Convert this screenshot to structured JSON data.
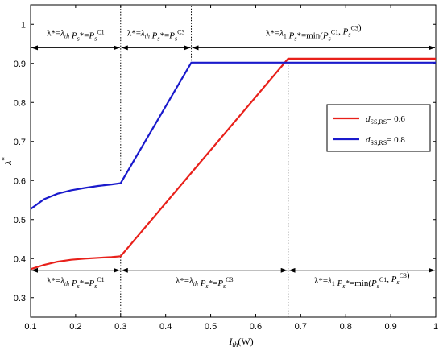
{
  "chart_data": {
    "type": "line",
    "xlabel": "I_th(W)",
    "ylabel": "λ*",
    "xlim": [
      0.1,
      1.0
    ],
    "ylim": [
      0.25,
      1.05
    ],
    "xticks": [
      0.1,
      0.2,
      0.3,
      0.4,
      0.5,
      0.6,
      0.7,
      0.8,
      0.9,
      1
    ],
    "xtick_labels": [
      "0.1",
      "0.2",
      "0.3",
      "0.4",
      "0.5",
      "0.6",
      "0.7",
      "0.8",
      "0.9",
      "1"
    ],
    "yticks": [
      0.3,
      0.4,
      0.5,
      0.6,
      0.7,
      0.8,
      0.9,
      1
    ],
    "ytick_labels": [
      "0.3",
      "0.4",
      "0.5",
      "0.6",
      "0.7",
      "0.8",
      "0.9",
      "1"
    ],
    "grid": false,
    "legend_placement": "right",
    "series": [
      {
        "name": "d_SS,RS= 0.6",
        "color": "#e8201a",
        "x": [
          0.1,
          0.13,
          0.16,
          0.19,
          0.22,
          0.25,
          0.28,
          0.3,
          0.672,
          1.0
        ],
        "y": [
          0.373,
          0.384,
          0.392,
          0.397,
          0.4,
          0.402,
          0.404,
          0.406,
          0.912,
          0.912
        ]
      },
      {
        "name": "d_SS,RS= 0.8",
        "color": "#1a1acc",
        "x": [
          0.1,
          0.13,
          0.16,
          0.19,
          0.22,
          0.25,
          0.28,
          0.3,
          0.457,
          1.0
        ],
        "y": [
          0.527,
          0.552,
          0.566,
          0.575,
          0.581,
          0.586,
          0.59,
          0.593,
          0.902,
          0.902
        ]
      }
    ],
    "reference_lines": [
      {
        "x": 0.3,
        "y_from": 0.625,
        "y_to": 1.05,
        "style": "dotted"
      },
      {
        "x": 0.457,
        "y_from": 0.9,
        "y_to": 1.05,
        "style": "dotted"
      },
      {
        "x": 0.3,
        "y_from": 0.25,
        "y_to": 0.41,
        "style": "dotted"
      },
      {
        "x": 0.672,
        "y_from": 0.25,
        "y_to": 0.91,
        "style": "dotted"
      }
    ],
    "annotations_top": [
      {
        "x_from": 0.1,
        "x_to": 0.3,
        "y": 0.94,
        "text": "λ*=λth Ps*=PsC1"
      },
      {
        "x_from": 0.3,
        "x_to": 0.457,
        "y": 0.94,
        "text": "λ*=λth Ps*=PsC3"
      },
      {
        "x_from": 0.457,
        "x_to": 1.0,
        "y": 0.94,
        "text": "λ*=λ1 Ps*=min(PsC1, PsC3)"
      }
    ],
    "annotations_bottom": [
      {
        "x_from": 0.1,
        "x_to": 0.3,
        "y": 0.37,
        "text": "λ*=λth Ps*=PsC1"
      },
      {
        "x_from": 0.3,
        "x_to": 0.672,
        "y": 0.37,
        "text": "λ*=λth Ps*=PsC3"
      },
      {
        "x_from": 0.672,
        "x_to": 1.0,
        "y": 0.37,
        "text": "λ*=λ1 Ps*=min(PsC1, PsC3)"
      }
    ]
  }
}
